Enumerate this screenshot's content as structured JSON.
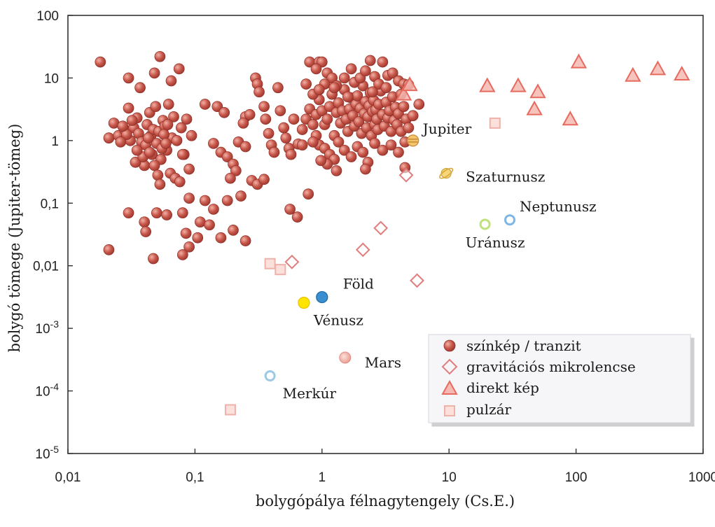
{
  "chart_data": {
    "type": "scatter",
    "x_scale": "log",
    "y_scale": "log",
    "xlim": [
      0.01,
      1000
    ],
    "ylim": [
      1e-05,
      100
    ],
    "xlabel": "bolygópálya félnagytengely (Cs.E.)",
    "ylabel": "bolygó tömege (Jupiter-tömeg)",
    "x_ticks": [
      {
        "value": 0.01,
        "label": "0,01"
      },
      {
        "value": 0.1,
        "label": "0,1"
      },
      {
        "value": 1,
        "label": "1"
      },
      {
        "value": 10,
        "label": "10"
      },
      {
        "value": 100,
        "label": "100"
      },
      {
        "value": 1000,
        "label": "1000"
      }
    ],
    "y_ticks": [
      {
        "value": 100,
        "base": "100",
        "exp": ""
      },
      {
        "value": 10,
        "base": "10",
        "exp": ""
      },
      {
        "value": 1,
        "base": "1",
        "exp": ""
      },
      {
        "value": 0.1,
        "base": "0,1",
        "exp": ""
      },
      {
        "value": 0.01,
        "base": "0,01",
        "exp": ""
      },
      {
        "value": 0.001,
        "base": "10",
        "exp": "-3"
      },
      {
        "value": 0.0001,
        "base": "10",
        "exp": "-4"
      },
      {
        "value": 1e-05,
        "base": "10",
        "exp": "-5"
      }
    ],
    "legend_position": "bottom-right",
    "colors": {
      "spectro": "#b5443a",
      "spectro_light": "#f0a89d",
      "microlens": "#e49a9a",
      "direct": "#e8756a",
      "pulsar": "#f0b8b0"
    },
    "series": [
      {
        "name": "színkép / tranzit",
        "marker": "circle",
        "points": [
          [
            0.018,
            18
          ],
          [
            0.053,
            22
          ],
          [
            0.03,
            10
          ],
          [
            0.037,
            7
          ],
          [
            0.048,
            12
          ],
          [
            0.075,
            14
          ],
          [
            0.065,
            9
          ],
          [
            0.021,
            1.1
          ],
          [
            0.023,
            1.9
          ],
          [
            0.025,
            1.2
          ],
          [
            0.028,
            1.5
          ],
          [
            0.03,
            3.3
          ],
          [
            0.031,
            1
          ],
          [
            0.033,
            1.6
          ],
          [
            0.035,
            2.3
          ],
          [
            0.036,
            1.3
          ],
          [
            0.038,
            0.95
          ],
          [
            0.04,
            0.4
          ],
          [
            0.042,
            1.8
          ],
          [
            0.044,
            2.8
          ],
          [
            0.045,
            1.2
          ],
          [
            0.046,
            0.6
          ],
          [
            0.047,
            1.5
          ],
          [
            0.049,
            3.5
          ],
          [
            0.05,
            0.9
          ],
          [
            0.052,
            1.4
          ],
          [
            0.054,
            0.5
          ],
          [
            0.056,
            2.1
          ],
          [
            0.058,
            1.7
          ],
          [
            0.06,
            0.7
          ],
          [
            0.062,
            3.8
          ],
          [
            0.064,
            0.3
          ],
          [
            0.066,
            1.1
          ],
          [
            0.068,
            2.4
          ],
          [
            0.07,
            0.25
          ],
          [
            0.072,
            1
          ],
          [
            0.076,
            0.22
          ],
          [
            0.078,
            1.6
          ],
          [
            0.082,
            0.6
          ],
          [
            0.086,
            2.2
          ],
          [
            0.09,
            0.35
          ],
          [
            0.094,
            1.2
          ],
          [
            0.034,
            0.45
          ],
          [
            0.039,
            0.55
          ],
          [
            0.041,
            0.85
          ],
          [
            0.043,
            1.1
          ],
          [
            0.029,
            1.25
          ],
          [
            0.027,
            1.7
          ],
          [
            0.032,
            2.1
          ],
          [
            0.026,
            0.95
          ],
          [
            0.055,
            0.75
          ],
          [
            0.057,
            1.25
          ],
          [
            0.059,
            0.9
          ],
          [
            0.061,
            1.8
          ],
          [
            0.044,
            0.65
          ],
          [
            0.048,
            0.4
          ],
          [
            0.051,
            0.28
          ],
          [
            0.053,
            0.2
          ],
          [
            0.035,
            0.7
          ],
          [
            0.12,
            3.8
          ],
          [
            0.15,
            3.5
          ],
          [
            0.17,
            2.8
          ],
          [
            0.14,
            0.9
          ],
          [
            0.16,
            0.65
          ],
          [
            0.18,
            0.55
          ],
          [
            0.2,
            0.42
          ],
          [
            0.22,
            0.95
          ],
          [
            0.25,
            2.4
          ],
          [
            0.27,
            2.6
          ],
          [
            0.24,
            1.9
          ],
          [
            0.3,
            10
          ],
          [
            0.31,
            8
          ],
          [
            0.32,
            6
          ],
          [
            0.35,
            3.5
          ],
          [
            0.36,
            2.2
          ],
          [
            0.38,
            1.3
          ],
          [
            0.4,
            0.85
          ],
          [
            0.42,
            0.65
          ],
          [
            0.45,
            7
          ],
          [
            0.47,
            3
          ],
          [
            0.5,
            1.6
          ],
          [
            0.52,
            1.1
          ],
          [
            0.55,
            0.75
          ],
          [
            0.57,
            0.6
          ],
          [
            0.6,
            2.2
          ],
          [
            0.25,
            0.8
          ],
          [
            0.21,
            0.33
          ],
          [
            0.19,
            0.25
          ],
          [
            0.28,
            0.23
          ],
          [
            0.23,
            0.13
          ],
          [
            0.31,
            0.2
          ],
          [
            0.35,
            0.24
          ],
          [
            0.08,
            0.6
          ],
          [
            0.09,
            0.12
          ],
          [
            0.12,
            0.11
          ],
          [
            0.14,
            0.08
          ],
          [
            0.18,
            0.11
          ],
          [
            0.03,
            0.07
          ],
          [
            0.04,
            0.05
          ],
          [
            0.05,
            0.07
          ],
          [
            0.041,
            0.035
          ],
          [
            0.06,
            0.065
          ],
          [
            0.08,
            0.07
          ],
          [
            0.085,
            0.033
          ],
          [
            0.11,
            0.05
          ],
          [
            0.13,
            0.045
          ],
          [
            0.105,
            0.028
          ],
          [
            0.16,
            0.028
          ],
          [
            0.09,
            0.02
          ],
          [
            0.08,
            0.015
          ],
          [
            0.2,
            0.037
          ],
          [
            0.25,
            0.025
          ],
          [
            0.021,
            0.018
          ],
          [
            0.047,
            0.013
          ],
          [
            0.56,
            0.08
          ],
          [
            0.78,
            0.14
          ],
          [
            0.64,
            0.06
          ],
          [
            0.7,
            1.5
          ],
          [
            0.75,
            2.2
          ],
          [
            0.8,
            3.2
          ],
          [
            0.85,
            1.8
          ],
          [
            0.9,
            2.6
          ],
          [
            0.95,
            4.5
          ],
          [
            1,
            3
          ],
          [
            1.05,
            1.8
          ],
          [
            1.1,
            2.2
          ],
          [
            1.15,
            3.5
          ],
          [
            1.2,
            5.5
          ],
          [
            1.25,
            1.2
          ],
          [
            1.3,
            2.8
          ],
          [
            1.35,
            4
          ],
          [
            1.4,
            1.9
          ],
          [
            1.45,
            3
          ],
          [
            1.5,
            6.5
          ],
          [
            1.55,
            2.2
          ],
          [
            1.6,
            1.4
          ],
          [
            1.65,
            3.2
          ],
          [
            1.7,
            4.8
          ],
          [
            1.75,
            2.5
          ],
          [
            1.8,
            1.7
          ],
          [
            1.85,
            3.8
          ],
          [
            1.9,
            5.2
          ],
          [
            1.95,
            2
          ],
          [
            2,
            3.3
          ],
          [
            2.05,
            1.3
          ],
          [
            2.1,
            7.5
          ],
          [
            2.15,
            2.7
          ],
          [
            2.2,
            4.2
          ],
          [
            2.25,
            1.6
          ],
          [
            2.3,
            2.4
          ],
          [
            2.35,
            3.6
          ],
          [
            2.4,
            5.8
          ],
          [
            2.45,
            1.2
          ],
          [
            2.5,
            2.9
          ],
          [
            2.55,
            4.4
          ],
          [
            2.6,
            1.8
          ],
          [
            2.65,
            3.1
          ],
          [
            2.7,
            2.2
          ],
          [
            2.75,
            1.5
          ],
          [
            2.8,
            3.8
          ],
          [
            2.9,
            6.2
          ],
          [
            3,
            2.6
          ],
          [
            3.1,
            1.7
          ],
          [
            3.2,
            4.1
          ],
          [
            3.3,
            2.3
          ],
          [
            3.4,
            3
          ],
          [
            3.5,
            1.4
          ],
          [
            3.6,
            5
          ],
          [
            3.7,
            2.1
          ],
          [
            3.8,
            3.4
          ],
          [
            3.9,
            1.8
          ],
          [
            4,
            2.7
          ],
          [
            4.2,
            1.4
          ],
          [
            4.4,
            3.5
          ],
          [
            4.6,
            2.2
          ],
          [
            4.8,
            1.6
          ],
          [
            5.2,
            2.5
          ],
          [
            5.8,
            3.8
          ],
          [
            0.9,
            1.2
          ],
          [
            0.95,
            0.85
          ],
          [
            1.05,
            0.75
          ],
          [
            1.15,
            0.6
          ],
          [
            1.25,
            0.5
          ],
          [
            1.35,
            0.95
          ],
          [
            1.5,
            0.7
          ],
          [
            1.7,
            0.55
          ],
          [
            1.9,
            0.8
          ],
          [
            2.1,
            0.65
          ],
          [
            2.3,
            0.45
          ],
          [
            2.6,
            0.9
          ],
          [
            3,
            0.7
          ],
          [
            3.5,
            0.85
          ],
          [
            4,
            0.65
          ],
          [
            4.5,
            0.95
          ],
          [
            2.2,
            0.35
          ],
          [
            1.1,
            0.42
          ],
          [
            0.98,
            0.48
          ],
          [
            1.3,
            0.33
          ],
          [
            0.65,
            0.88
          ],
          [
            0.85,
            0.95
          ],
          [
            0.8,
            18
          ],
          [
            0.95,
            18
          ],
          [
            1,
            18
          ],
          [
            0.9,
            14
          ],
          [
            1.1,
            12
          ],
          [
            1.2,
            10
          ],
          [
            1.3,
            7.5
          ],
          [
            1.5,
            10
          ],
          [
            1.7,
            14
          ],
          [
            1.8,
            8.5
          ],
          [
            2,
            10
          ],
          [
            2.2,
            13
          ],
          [
            2.4,
            19
          ],
          [
            2.6,
            10.5
          ],
          [
            2.8,
            8
          ],
          [
            3,
            18
          ],
          [
            3.3,
            11
          ],
          [
            3.6,
            12
          ],
          [
            4,
            9
          ],
          [
            4.4,
            8
          ],
          [
            4.8,
            7.8
          ],
          [
            1.05,
            8
          ],
          [
            0.75,
            8
          ],
          [
            0.85,
            5.5
          ],
          [
            0.95,
            6.5
          ],
          [
            1.25,
            7
          ],
          [
            1.6,
            5
          ],
          [
            2.5,
            6
          ],
          [
            3.2,
            7
          ],
          [
            4.2,
            5.5
          ],
          [
            4.5,
            0.37
          ],
          [
            0.7,
            0.85
          ]
        ]
      },
      {
        "name": "gravitációs mikrolencse",
        "marker": "diamond",
        "points": [
          [
            0.58,
            0.0115
          ],
          [
            2.1,
            0.018
          ],
          [
            2.9,
            0.04
          ],
          [
            4.6,
            0.28
          ],
          [
            5.6,
            0.0058
          ]
        ]
      },
      {
        "name": "direkt kép",
        "marker": "triangle",
        "points": [
          [
            4.4,
            5.5
          ],
          [
            4.9,
            7.8
          ],
          [
            20,
            7.5
          ],
          [
            35,
            7.5
          ],
          [
            50,
            6
          ],
          [
            47,
            3.2
          ],
          [
            90,
            2.2
          ],
          [
            105,
            18
          ],
          [
            280,
            11
          ],
          [
            440,
            14
          ],
          [
            680,
            11.5
          ]
        ]
      },
      {
        "name": "pulzár",
        "marker": "square",
        "points": [
          [
            0.19,
            5e-05
          ],
          [
            0.39,
            0.0108
          ],
          [
            0.47,
            0.0087
          ],
          [
            23,
            1.9
          ]
        ]
      }
    ],
    "planets": [
      {
        "name": "Merkúr",
        "x": 0.39,
        "y": 0.000174,
        "fill": "#ffffff",
        "stroke": "#9ec9e3",
        "ring": true
      },
      {
        "name": "Vénusz",
        "x": 0.72,
        "y": 0.00256,
        "fill": "#ffe400",
        "stroke": "#e8c400",
        "ring": false
      },
      {
        "name": "Föld",
        "x": 1.0,
        "y": 0.00315,
        "fill": "#3a8fd0",
        "stroke": "#1e6aa8",
        "ring": false
      },
      {
        "name": "Mars",
        "x": 1.52,
        "y": 0.00034,
        "fill": "#f2b6ac",
        "stroke": "#e08f85",
        "ring": false
      },
      {
        "name": "Jupiter",
        "x": 5.2,
        "y": 1.0,
        "fill": "#f4c56a",
        "stroke": "#c8893a",
        "ring": false
      },
      {
        "name": "Szaturnusz",
        "x": 9.5,
        "y": 0.3,
        "fill": "#f7d77a",
        "stroke": "#c9a43a",
        "ring": true
      },
      {
        "name": "Uránusz",
        "x": 19.2,
        "y": 0.046,
        "fill": "#ffffff",
        "stroke": "#bfe27a",
        "ring": true
      },
      {
        "name": "Neptunusz",
        "x": 30.1,
        "y": 0.054,
        "fill": "#ffffff",
        "stroke": "#7eb6e6",
        "ring": true
      }
    ]
  }
}
